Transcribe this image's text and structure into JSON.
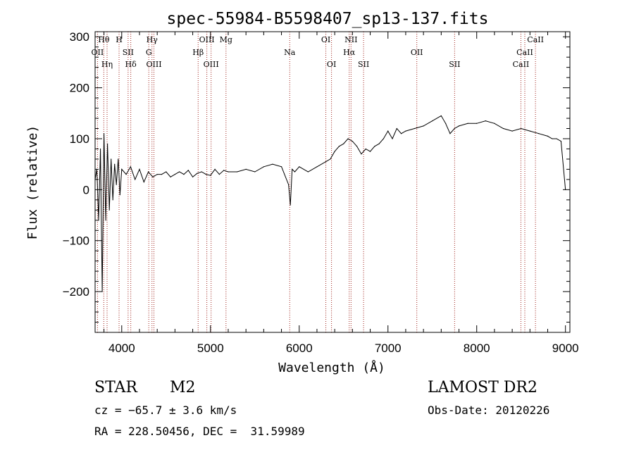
{
  "chart_data": {
    "type": "line",
    "title": "spec-55984-B5598407_sp13-137.fits",
    "xlabel": "Wavelength (Å)",
    "ylabel": "Flux (relative)",
    "xlim": [
      3700,
      9050
    ],
    "ylim": [
      -280,
      310
    ],
    "xticks": [
      4000,
      5000,
      6000,
      7000,
      8000,
      9000
    ],
    "yticks": [
      -200,
      -100,
      0,
      100,
      200,
      300
    ],
    "grid": false,
    "series": [
      {
        "x": [
          3700,
          3720,
          3740,
          3760,
          3780,
          3800,
          3820,
          3840,
          3860,
          3880,
          3900,
          3920,
          3940,
          3960,
          3980,
          4000,
          4050,
          4100,
          4150,
          4200,
          4250,
          4300,
          4350,
          4400,
          4450,
          4500,
          4550,
          4600,
          4650,
          4700,
          4750,
          4800,
          4850,
          4900,
          4950,
          5000,
          5050,
          5100,
          5150,
          5200,
          5300,
          5400,
          5500,
          5600,
          5700,
          5800,
          5880,
          5900,
          5920,
          5950,
          6000,
          6100,
          6200,
          6300,
          6350,
          6400,
          6450,
          6500,
          6550,
          6600,
          6650,
          6700,
          6750,
          6800,
          6850,
          6900,
          6950,
          7000,
          7050,
          7100,
          7150,
          7200,
          7300,
          7400,
          7500,
          7600,
          7650,
          7700,
          7750,
          7800,
          7900,
          8000,
          8100,
          8200,
          8300,
          8400,
          8500,
          8600,
          8700,
          8800,
          8850,
          8900,
          8950,
          9000
        ],
        "y": [
          20,
          40,
          -60,
          80,
          -200,
          110,
          -60,
          90,
          -40,
          60,
          -20,
          50,
          10,
          60,
          -10,
          40,
          30,
          45,
          20,
          40,
          15,
          35,
          25,
          30,
          30,
          35,
          25,
          30,
          35,
          30,
          38,
          25,
          32,
          35,
          30,
          28,
          40,
          30,
          38,
          35,
          35,
          40,
          35,
          45,
          50,
          45,
          10,
          -30,
          40,
          35,
          45,
          35,
          45,
          55,
          60,
          75,
          85,
          90,
          100,
          95,
          85,
          70,
          80,
          75,
          85,
          90,
          100,
          115,
          100,
          120,
          110,
          115,
          120,
          125,
          135,
          145,
          130,
          110,
          120,
          125,
          130,
          130,
          135,
          130,
          120,
          115,
          120,
          115,
          110,
          105,
          100,
          100,
          95,
          0
        ]
      }
    ],
    "line_labels": [
      {
        "name": "Hθ",
        "x": 3798
      },
      {
        "name": "OII",
        "x": 3727
      },
      {
        "name": "Hη",
        "x": 3835
      },
      {
        "name": "H",
        "x": 3970
      },
      {
        "name": "SII",
        "x": 4072
      },
      {
        "name": "Hδ",
        "x": 4102
      },
      {
        "name": "Hγ",
        "x": 4341
      },
      {
        "name": "G",
        "x": 4305
      },
      {
        "name": "OIII",
        "x": 4363
      },
      {
        "name": "OIII",
        "x": 4959
      },
      {
        "name": "Hβ",
        "x": 4861
      },
      {
        "name": "OIII",
        "x": 5007
      },
      {
        "name": "Mg",
        "x": 5175
      },
      {
        "name": "Na",
        "x": 5893
      },
      {
        "name": "OI",
        "x": 6364
      },
      {
        "name": "OI",
        "x": 6300
      },
      {
        "name": "Hα",
        "x": 6563
      },
      {
        "name": "SII",
        "x": 6725
      },
      {
        "name": "NII",
        "x": 6584
      },
      {
        "name": "OII",
        "x": 7325
      },
      {
        "name": "SII",
        "x": 7751
      },
      {
        "name": "CaII",
        "x": 8662
      },
      {
        "name": "CaII",
        "x": 8542
      },
      {
        "name": "CaII",
        "x": 8498
      }
    ]
  },
  "info": {
    "object_class": "STAR",
    "subclass": "M2",
    "redshift": "cz = −65.7 ± 3.6 km/s",
    "coords": "RA = 228.50456, DEC =  31.59989",
    "survey": "LAMOST DR2",
    "obs_date": "Obs-Date: 20120226"
  }
}
